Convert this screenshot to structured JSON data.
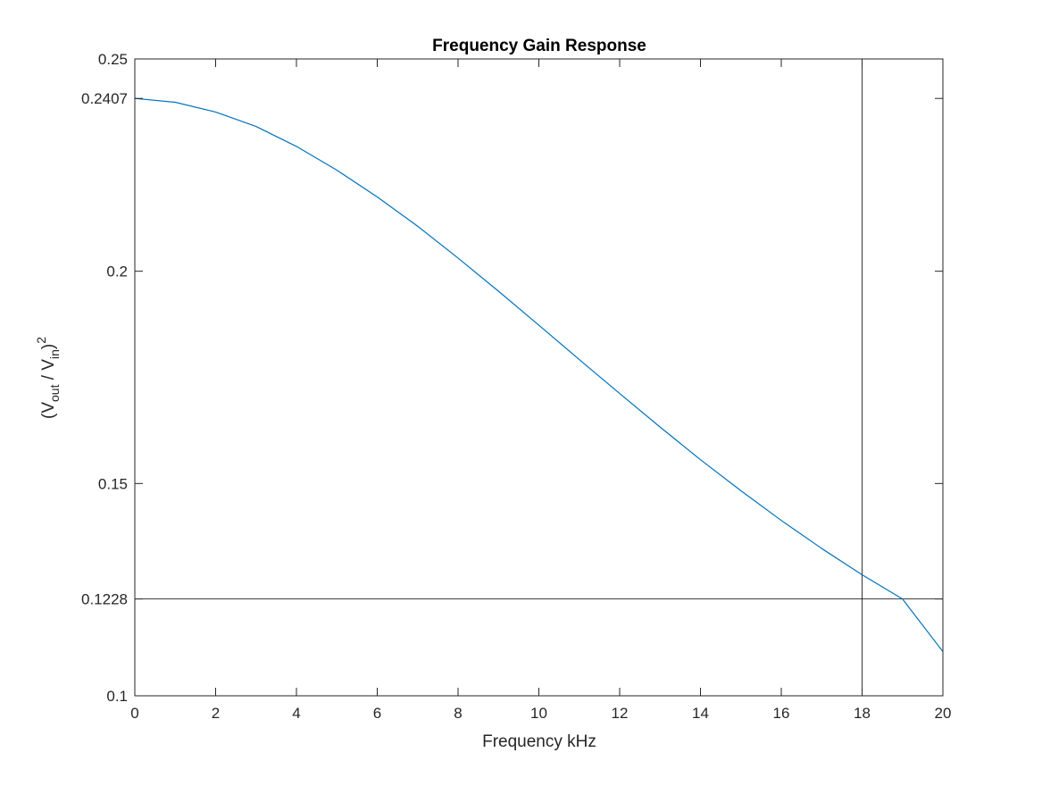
{
  "chart_data": {
    "type": "line",
    "title": "Frequency Gain Response",
    "xlabel": "Frequency kHz",
    "ylabel": {
      "open": "(V",
      "out_sub": "out",
      "mid": " / V",
      "in_sub": "in",
      "close": ")",
      "sup": "2"
    },
    "xlim": [
      0,
      20
    ],
    "ylim": [
      0.1,
      0.25
    ],
    "x_ticks": [
      0,
      2,
      4,
      6,
      8,
      10,
      12,
      14,
      16,
      18,
      20
    ],
    "x_tick_labels": [
      "0",
      "2",
      "4",
      "6",
      "8",
      "10",
      "12",
      "14",
      "16",
      "18",
      "20"
    ],
    "y_ticks": [
      0.1,
      0.1228,
      0.15,
      0.2,
      0.2407,
      0.25
    ],
    "y_tick_labels": [
      "0.1",
      "0.1228",
      "0.15",
      "0.2",
      "0.2407",
      "0.25"
    ],
    "grid": false,
    "series": [
      {
        "color": "#0072BD",
        "x": [
          0,
          1,
          2,
          3,
          4,
          5,
          6,
          7,
          8,
          9,
          10,
          11,
          12,
          13,
          14,
          15,
          16,
          17,
          18,
          19,
          20
        ],
        "y": [
          0.2407,
          0.2398,
          0.2375,
          0.2341,
          0.2294,
          0.2238,
          0.2175,
          0.2106,
          0.2031,
          0.1953,
          0.1873,
          0.1792,
          0.1712,
          0.1633,
          0.1556,
          0.1483,
          0.1413,
          0.1347,
          0.1285,
          0.1228,
          0.1104
        ]
      }
    ],
    "reference_lines": [
      {
        "orientation": "vertical",
        "x": 18,
        "color": "#000000"
      },
      {
        "orientation": "horizontal",
        "y": 0.1228,
        "color": "#000000"
      }
    ]
  }
}
